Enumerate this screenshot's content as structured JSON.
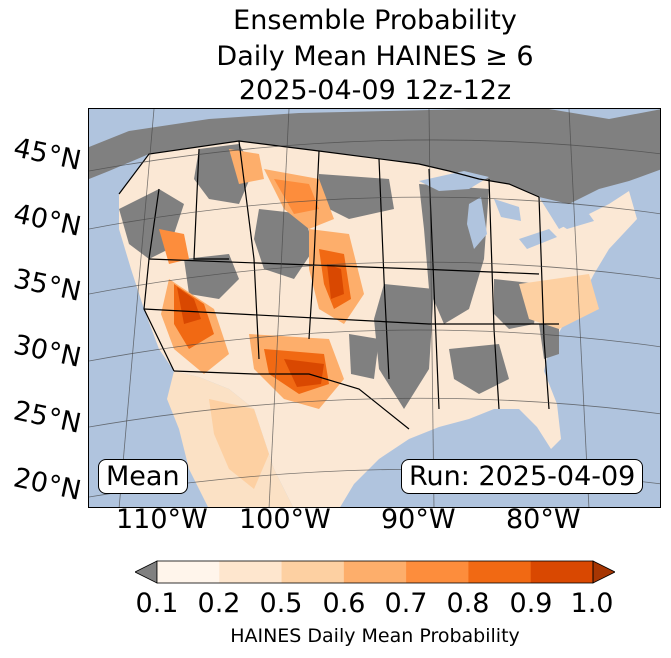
{
  "title": {
    "line1": "Ensemble Probability",
    "line2": "Daily Mean HAINES ≥ 6",
    "line3": "2025-04-09 12z-12z"
  },
  "map": {
    "latitude_labels": [
      "45°N",
      "40°N",
      "35°N",
      "30°N",
      "25°N",
      "20°N"
    ],
    "longitude_labels": [
      "110°W",
      "100°W",
      "90°W",
      "80°W"
    ],
    "ocean_color": "#b0c4de",
    "no_data_color": "#808080",
    "region": "Contiguous United States, northern Mexico, southern Canada"
  },
  "badges": {
    "statistic": "Mean",
    "run": "Run: 2025-04-09"
  },
  "colorbar": {
    "ticks": [
      "0.1",
      "0.2",
      "0.5",
      "0.6",
      "0.7",
      "0.8",
      "0.9",
      "1.0"
    ],
    "colors": [
      "#fff5eb",
      "#fee6ce",
      "#fdd0a2",
      "#fdae6b",
      "#fd8d3c",
      "#f16913",
      "#d94801",
      "#a63603"
    ],
    "under_color": "#808080",
    "over_color": "#a63603",
    "label": "HAINES Daily Mean Probability"
  }
}
